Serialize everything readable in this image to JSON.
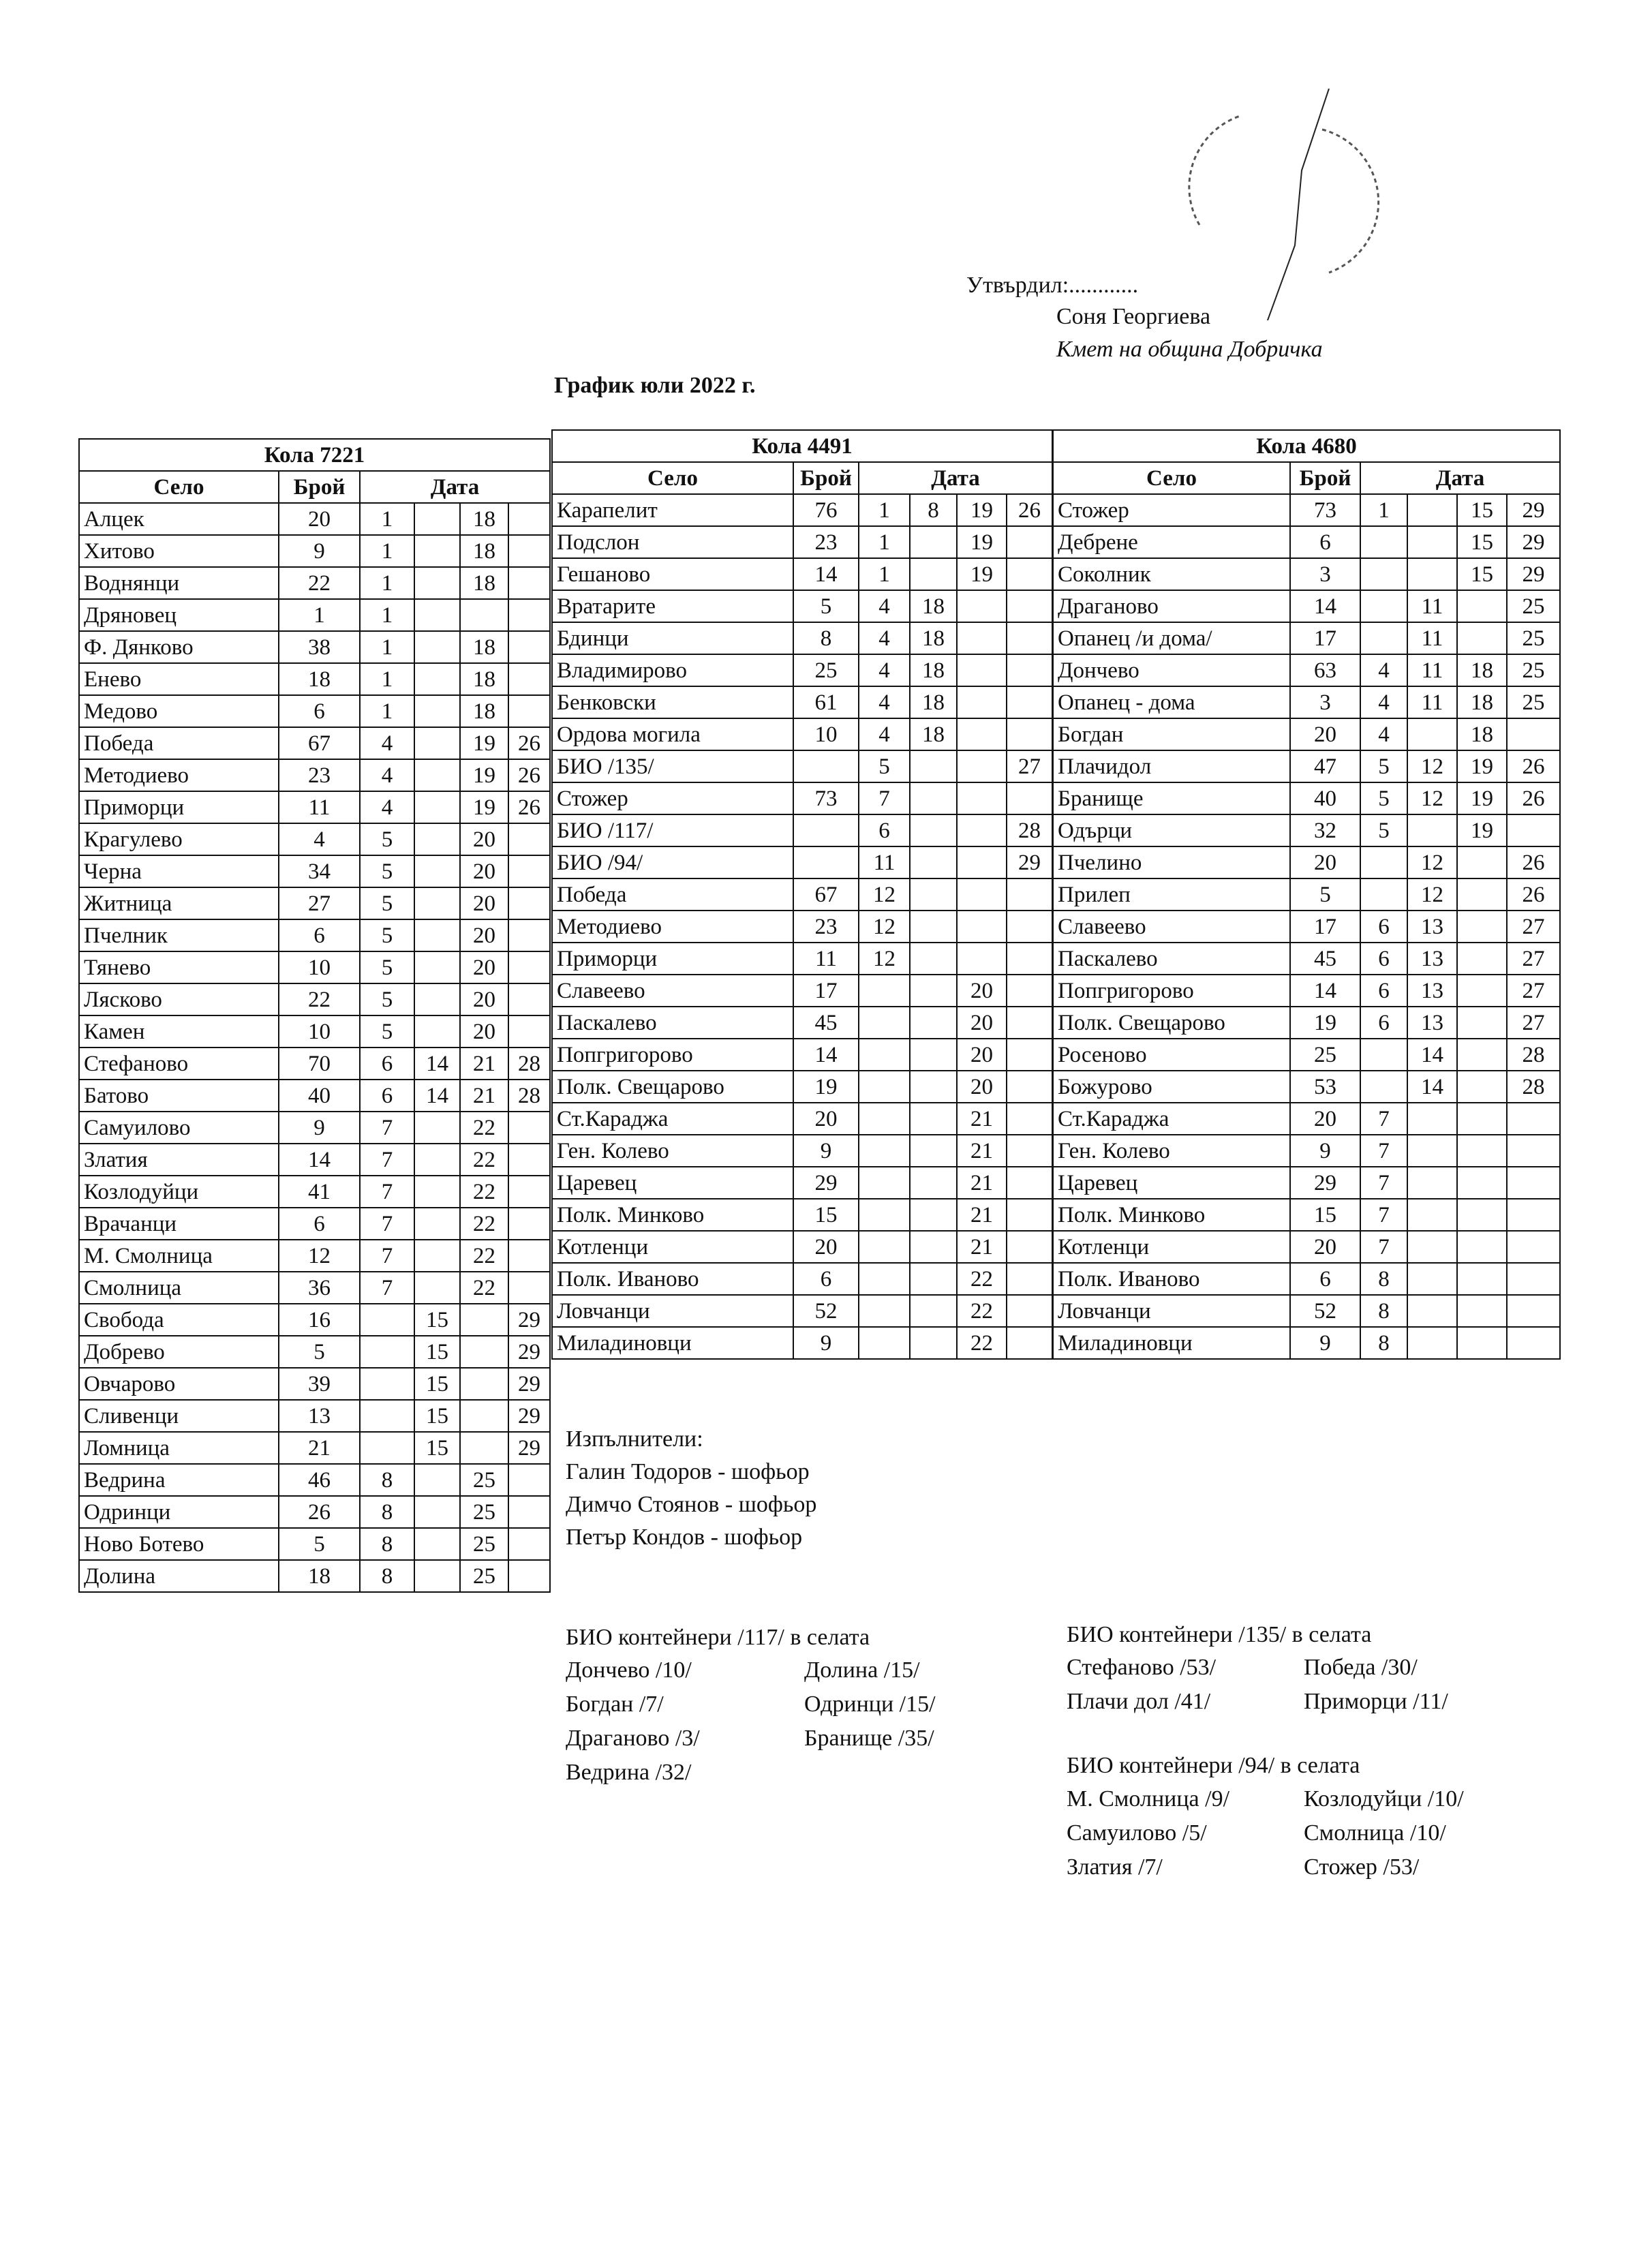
{
  "approval": {
    "label": "Утвърдил:............",
    "name": "Соня Георгиева",
    "position": "Кмет  на община Добричка"
  },
  "title": "График юли 2022 г.",
  "tables": [
    {
      "title": "Кола 7221",
      "headers": [
        "Село",
        "Брой",
        "Дата"
      ],
      "rows": [
        [
          "Алцек",
          20,
          1,
          null,
          18,
          null
        ],
        [
          "Хитово",
          9,
          1,
          null,
          18,
          null
        ],
        [
          "Воднянци",
          22,
          1,
          null,
          18,
          null
        ],
        [
          "Дряновец",
          1,
          1,
          null,
          null,
          null
        ],
        [
          "Ф. Дянково",
          38,
          1,
          null,
          18,
          null
        ],
        [
          "Енево",
          18,
          1,
          null,
          18,
          null
        ],
        [
          "Медово",
          6,
          1,
          null,
          18,
          null
        ],
        [
          "Победа",
          67,
          4,
          null,
          19,
          26
        ],
        [
          "Методиево",
          23,
          4,
          null,
          19,
          26
        ],
        [
          "Приморци",
          11,
          4,
          null,
          19,
          26
        ],
        [
          "Крагулево",
          4,
          5,
          null,
          20,
          null
        ],
        [
          "Черна",
          34,
          5,
          null,
          20,
          null
        ],
        [
          "Житница",
          27,
          5,
          null,
          20,
          null
        ],
        [
          "Пчелник",
          6,
          5,
          null,
          20,
          null
        ],
        [
          "Тянево",
          10,
          5,
          null,
          20,
          null
        ],
        [
          "Лясково",
          22,
          5,
          null,
          20,
          null
        ],
        [
          "Камен",
          10,
          5,
          null,
          20,
          null
        ],
        [
          "Стефаново",
          70,
          6,
          14,
          21,
          28
        ],
        [
          "Батово",
          40,
          6,
          14,
          21,
          28
        ],
        [
          "Самуилово",
          9,
          7,
          null,
          22,
          null
        ],
        [
          "Златия",
          14,
          7,
          null,
          22,
          null
        ],
        [
          "Козлодуйци",
          41,
          7,
          null,
          22,
          null
        ],
        [
          "Врачанци",
          6,
          7,
          null,
          22,
          null
        ],
        [
          "М. Смолница",
          12,
          7,
          null,
          22,
          null
        ],
        [
          "Смолница",
          36,
          7,
          null,
          22,
          null
        ],
        [
          "Свобода",
          16,
          null,
          15,
          null,
          29
        ],
        [
          "Добрево",
          5,
          null,
          15,
          null,
          29
        ],
        [
          "Овчарово",
          39,
          null,
          15,
          null,
          29
        ],
        [
          "Сливенци",
          13,
          null,
          15,
          null,
          29
        ],
        [
          "Ломница",
          21,
          null,
          15,
          null,
          29
        ],
        [
          "Ведрина",
          46,
          8,
          null,
          25,
          null
        ],
        [
          "Одринци",
          26,
          8,
          null,
          25,
          null
        ],
        [
          "Ново Ботево",
          5,
          8,
          null,
          25,
          null
        ],
        [
          "Долина",
          18,
          8,
          null,
          25,
          null
        ]
      ]
    },
    {
      "title": "Кола 4491",
      "headers": [
        "Село",
        "Брой",
        "Дата"
      ],
      "rows": [
        [
          "Карапелит",
          76,
          1,
          8,
          19,
          26
        ],
        [
          "Подслон",
          23,
          1,
          null,
          19,
          null
        ],
        [
          "Гешаново",
          14,
          1,
          null,
          19,
          null
        ],
        [
          "Вратарите",
          5,
          4,
          18,
          null,
          null
        ],
        [
          "Бдинци",
          8,
          4,
          18,
          null,
          null
        ],
        [
          "Владимирово",
          25,
          4,
          18,
          null,
          null
        ],
        [
          "Бенковски",
          61,
          4,
          18,
          null,
          null
        ],
        [
          "Ордова могила",
          10,
          4,
          18,
          null,
          null
        ],
        [
          "БИО /135/",
          null,
          5,
          null,
          null,
          27
        ],
        [
          "Стожер",
          73,
          7,
          null,
          null,
          null
        ],
        [
          "БИО /117/",
          null,
          6,
          null,
          null,
          28
        ],
        [
          "БИО /94/",
          null,
          11,
          null,
          null,
          29
        ],
        [
          "Победа",
          67,
          12,
          null,
          null,
          null
        ],
        [
          "Методиево",
          23,
          12,
          null,
          null,
          null
        ],
        [
          "Приморци",
          11,
          12,
          null,
          null,
          null
        ],
        [
          "Славеево",
          17,
          null,
          null,
          20,
          null
        ],
        [
          "Паскалево",
          45,
          null,
          null,
          20,
          null
        ],
        [
          "Попгригорово",
          14,
          null,
          null,
          20,
          null
        ],
        [
          "Полк. Свещарово",
          19,
          null,
          null,
          20,
          null
        ],
        [
          "Ст.Караджа",
          20,
          null,
          null,
          21,
          null
        ],
        [
          "Ген. Колево",
          9,
          null,
          null,
          21,
          null
        ],
        [
          "Царевец",
          29,
          null,
          null,
          21,
          null
        ],
        [
          "Полк. Минково",
          15,
          null,
          null,
          21,
          null
        ],
        [
          "Котленци",
          20,
          null,
          null,
          21,
          null
        ],
        [
          "Полк. Иваново",
          6,
          null,
          null,
          22,
          null
        ],
        [
          "Ловчанци",
          52,
          null,
          null,
          22,
          null
        ],
        [
          "Миладиновци",
          9,
          null,
          null,
          22,
          null
        ]
      ]
    },
    {
      "title": "Кола 4680",
      "headers": [
        "Село",
        "Брой",
        "Дата"
      ],
      "rows": [
        [
          "Стожер",
          73,
          1,
          null,
          15,
          29
        ],
        [
          "Дебрене",
          6,
          null,
          null,
          15,
          29
        ],
        [
          "Соколник",
          3,
          null,
          null,
          15,
          29
        ],
        [
          "Драганово",
          14,
          null,
          11,
          null,
          25
        ],
        [
          "Опанец /и дома/",
          17,
          null,
          11,
          null,
          25
        ],
        [
          "Дончево",
          63,
          4,
          11,
          18,
          25
        ],
        [
          "Опанец - дома",
          3,
          4,
          11,
          18,
          25
        ],
        [
          "Богдан",
          20,
          4,
          null,
          18,
          null
        ],
        [
          "Плачидол",
          47,
          5,
          12,
          19,
          26
        ],
        [
          "Бранище",
          40,
          5,
          12,
          19,
          26
        ],
        [
          "Одърци",
          32,
          5,
          null,
          19,
          null
        ],
        [
          "Пчелино",
          20,
          null,
          12,
          null,
          26
        ],
        [
          "Прилеп",
          5,
          null,
          12,
          null,
          26
        ],
        [
          "Славеево",
          17,
          6,
          13,
          null,
          27
        ],
        [
          "Паскалево",
          45,
          6,
          13,
          null,
          27
        ],
        [
          "Попгригорово",
          14,
          6,
          13,
          null,
          27
        ],
        [
          "Полк. Свещарово",
          19,
          6,
          13,
          null,
          27
        ],
        [
          "Росеново",
          25,
          null,
          14,
          null,
          28
        ],
        [
          "Божурово",
          53,
          null,
          14,
          null,
          28
        ],
        [
          "Ст.Караджа",
          20,
          7,
          null,
          null,
          null
        ],
        [
          "Ген. Колево",
          9,
          7,
          null,
          null,
          null
        ],
        [
          "Царевец",
          29,
          7,
          null,
          null,
          null
        ],
        [
          "Полк. Минково",
          15,
          7,
          null,
          null,
          null
        ],
        [
          "Котленци",
          20,
          7,
          null,
          null,
          null
        ],
        [
          "Полк. Иваново",
          6,
          8,
          null,
          null,
          null
        ],
        [
          "Ловчанци",
          52,
          8,
          null,
          null,
          null
        ],
        [
          "Миладиновци",
          9,
          8,
          null,
          null,
          null
        ]
      ]
    }
  ],
  "performers": {
    "title": "Изпълнители:",
    "names": [
      "Галин Тодоров - шофьор",
      "Димчо Стоянов - шофьор",
      "Петър Кондов - шофьор"
    ]
  },
  "bio": [
    {
      "title": "БИО контейнери /117/ в селата",
      "columns": [
        [
          "Дончево /10/",
          "Богдан /7/",
          "Драганово /3/",
          "Ведрина /32/"
        ],
        [
          "Долина /15/",
          "Одринци /15/",
          "Бранище /35/"
        ]
      ]
    },
    {
      "title": "БИО контейнери /135/ в селата",
      "columns": [
        [
          "Стефаново /53/",
          "Плачи дол /41/"
        ],
        [
          "Победа /30/",
          "Приморци /11/"
        ]
      ]
    },
    {
      "title": "БИО контейнери /94/ в селата",
      "columns": [
        [
          "М. Смолница /9/",
          "Самуилово /5/",
          "Златия /7/"
        ],
        [
          "Козлодуйци /10/",
          "Смолница /10/",
          "Стожер /53/"
        ]
      ]
    }
  ]
}
